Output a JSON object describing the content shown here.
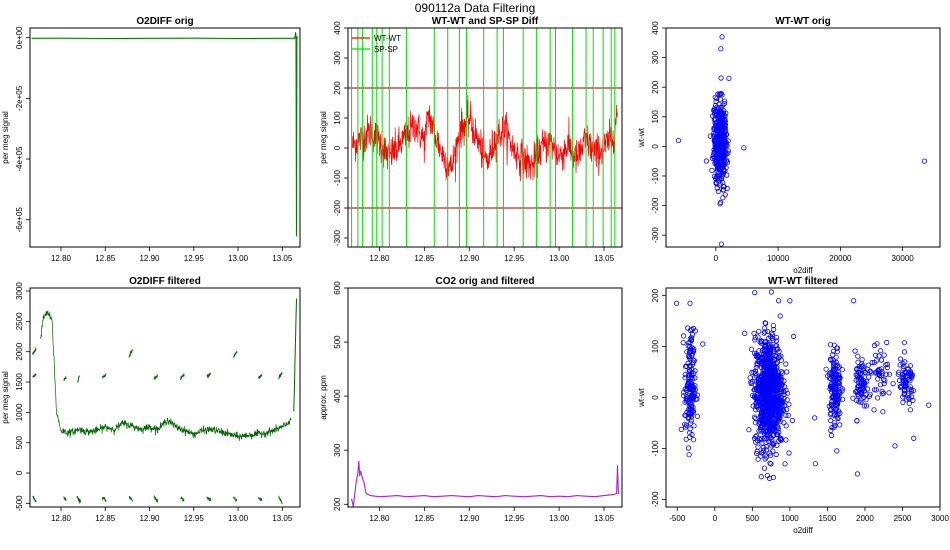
{
  "page_title": "090112a   Data Filtering",
  "chart_data": [
    {
      "type": "line",
      "title": "O2DIFF orig",
      "xlabel": "",
      "ylabel": "per meg signal",
      "xlim": [
        12.765,
        13.07
      ],
      "ylim": [
        -690000,
        32000
      ],
      "xticks": [
        12.8,
        12.85,
        12.9,
        12.95,
        13.0,
        13.05
      ],
      "xtick_labels": [
        "12.80",
        "12.85",
        "12.90",
        "12.95",
        "13.00",
        "13.05"
      ],
      "yticks": [
        0,
        -200000,
        -400000,
        -600000
      ],
      "ytick_labels": [
        "0e+00",
        "-2e+05",
        "-4e+05",
        "-6e+05"
      ],
      "series": [
        {
          "name": "O2DIFF",
          "color": "#008000",
          "x": [
            12.767,
            12.8,
            12.85,
            12.9,
            12.95,
            13.0,
            13.05,
            13.064,
            13.065,
            13.0655,
            13.066,
            13.0665,
            13.067
          ],
          "y": [
            -2000,
            -1500,
            -2500,
            -2000,
            -1500,
            -2500,
            -2000,
            -2000,
            18000,
            -2000,
            -655000,
            5000,
            -2000
          ]
        }
      ]
    },
    {
      "type": "line",
      "title": "WT-WT and SP-SP Diff",
      "xlabel": "",
      "ylabel": "per meg signal",
      "xlim": [
        12.765,
        13.07
      ],
      "ylim": [
        -330,
        400
      ],
      "xticks": [
        12.8,
        12.85,
        12.9,
        12.95,
        13.0,
        13.05
      ],
      "xtick_labels": [
        "12.80",
        "12.85",
        "12.90",
        "12.95",
        "13.00",
        "13.05"
      ],
      "yticks": [
        -300,
        -200,
        -100,
        0,
        100,
        200,
        300,
        400
      ],
      "ytick_labels": [
        "-300",
        "-200",
        "-100",
        "0",
        "100",
        "200",
        "300",
        "400"
      ],
      "hlines": [
        200,
        -200
      ],
      "hline_color": "#8b0000",
      "legend": [
        "WT-WT",
        "SP-SP"
      ],
      "legend_position": "top-left",
      "series": [
        {
          "name": "WT-WT",
          "color": "#ff0000",
          "x": [
            12.77,
            12.78,
            12.79,
            12.8,
            12.81,
            12.82,
            12.83,
            12.84,
            12.85,
            12.855,
            12.86,
            12.87,
            12.88,
            12.89,
            12.9,
            12.91,
            12.92,
            12.93,
            12.94,
            12.95,
            12.96,
            12.97,
            12.98,
            12.99,
            13.0,
            13.01,
            13.02,
            13.03,
            13.04,
            13.05,
            13.06,
            13.065
          ],
          "y": [
            10,
            30,
            60,
            20,
            -30,
            0,
            40,
            80,
            20,
            120,
            60,
            -20,
            -70,
            60,
            100,
            20,
            -50,
            40,
            60,
            -10,
            -40,
            -60,
            0,
            20,
            -30,
            10,
            -40,
            30,
            -20,
            0,
            40,
            120
          ],
          "band": 55
        },
        {
          "name": "SP-SP",
          "color": "#00e000",
          "spikes_x": [
            12.769,
            12.776,
            12.781,
            12.792,
            12.797,
            12.803,
            12.811,
            12.83,
            12.861,
            12.876,
            12.889,
            12.897,
            12.916,
            12.931,
            12.938,
            12.96,
            12.975,
            12.99,
            12.996,
            13.015,
            13.03,
            13.038,
            13.049,
            13.058,
            13.062
          ],
          "spike_top": 400,
          "spike_bottom": -330
        }
      ]
    },
    {
      "type": "scatter",
      "title": "WT-WT orig",
      "xlabel": "o2diff",
      "ylabel": "wt-wt",
      "xlim": [
        -8000,
        36000
      ],
      "ylim": [
        -340,
        400
      ],
      "xticks": [
        0,
        10000,
        20000,
        30000
      ],
      "xtick_labels": [
        "0",
        "10000",
        "20000",
        "30000"
      ],
      "yticks": [
        -300,
        -200,
        -100,
        0,
        100,
        200,
        300,
        400
      ],
      "ytick_labels": [
        "-300",
        "-200",
        "-100",
        "0",
        "100",
        "200",
        "300",
        "400"
      ],
      "marker_color": "#0000ff",
      "clusters": [
        {
          "x_mean": 700,
          "x_sd": 550,
          "y_mean": 10,
          "y_sd": 70,
          "n": 420
        }
      ],
      "points": [
        {
          "x": -6000,
          "y": 20
        },
        {
          "x": 33500,
          "y": -50
        },
        {
          "x": 4500,
          "y": -5
        },
        {
          "x": 1000,
          "y": 370
        },
        {
          "x": 800,
          "y": 330
        },
        {
          "x": 900,
          "y": -330
        },
        {
          "x": 2100,
          "y": 230
        }
      ]
    },
    {
      "type": "line",
      "title": "O2DIFF filtered",
      "xlabel": "",
      "ylabel": "per meg signal",
      "xlim": [
        12.765,
        13.07
      ],
      "ylim": [
        -560,
        3050
      ],
      "xticks": [
        12.8,
        12.85,
        12.9,
        12.95,
        13.0,
        13.05
      ],
      "xtick_labels": [
        "12.80",
        "12.85",
        "12.90",
        "12.95",
        "13.00",
        "13.05"
      ],
      "yticks": [
        -500,
        0,
        500,
        1000,
        1500,
        2000,
        2500,
        3000
      ],
      "ytick_labels": [
        "-500",
        "0",
        "500",
        "1000",
        "1500",
        "2000",
        "2500",
        "3000"
      ],
      "series": [
        {
          "name": "O2DIFF filtered",
          "color": "#006400",
          "x": [
            12.777,
            12.78,
            12.785,
            12.79,
            12.795,
            12.8,
            12.81,
            12.82,
            12.83,
            12.84,
            12.85,
            12.86,
            12.87,
            12.88,
            12.89,
            12.9,
            12.91,
            12.92,
            12.93,
            12.94,
            12.95,
            12.96,
            12.97,
            12.98,
            12.99,
            13.0,
            13.01,
            13.02,
            13.03,
            13.04,
            13.05,
            13.055,
            13.06
          ],
          "y": [
            2200,
            2550,
            2650,
            2500,
            1000,
            700,
            660,
            720,
            680,
            700,
            760,
            720,
            820,
            780,
            720,
            760,
            720,
            880,
            760,
            700,
            640,
            700,
            720,
            680,
            640,
            600,
            620,
            640,
            660,
            700,
            760,
            800,
            900
          ],
          "band": 55
        }
      ],
      "segments": [
        {
          "x": [
            12.768,
            12.772
          ],
          "y": [
            1950,
            2050
          ]
        },
        {
          "x": [
            12.768,
            12.772
          ],
          "y": [
            1580,
            1620
          ]
        },
        {
          "x": [
            12.768,
            12.772
          ],
          "y": [
            -390,
            -470
          ]
        },
        {
          "x": [
            12.803,
            12.806
          ],
          "y": [
            1540,
            1570
          ]
        },
        {
          "x": [
            12.803,
            12.806
          ],
          "y": [
            -390,
            -440
          ]
        },
        {
          "x": [
            12.819,
            12.821
          ],
          "y": [
            1500,
            1620
          ]
        },
        {
          "x": [
            12.818,
            12.822
          ],
          "y": [
            -400,
            -470
          ]
        },
        {
          "x": [
            12.847,
            12.851
          ],
          "y": [
            1570,
            1620
          ]
        },
        {
          "x": [
            12.847,
            12.851
          ],
          "y": [
            -400,
            -460
          ]
        },
        {
          "x": [
            12.877,
            12.881
          ],
          "y": [
            1930,
            2020
          ]
        },
        {
          "x": [
            12.877,
            12.881
          ],
          "y": [
            -390,
            -460
          ]
        },
        {
          "x": [
            12.905,
            12.909
          ],
          "y": [
            1560,
            1610
          ]
        },
        {
          "x": [
            12.905,
            12.909
          ],
          "y": [
            -400,
            -450
          ]
        },
        {
          "x": [
            12.935,
            12.939
          ],
          "y": [
            1570,
            1620
          ]
        },
        {
          "x": [
            12.935,
            12.939
          ],
          "y": [
            -400,
            -450
          ]
        },
        {
          "x": [
            12.965,
            12.969
          ],
          "y": [
            1590,
            1630
          ]
        },
        {
          "x": [
            12.965,
            12.969
          ],
          "y": [
            -400,
            -440
          ]
        },
        {
          "x": [
            12.995,
            12.999
          ],
          "y": [
            1920,
            2010
          ]
        },
        {
          "x": [
            12.995,
            12.999
          ],
          "y": [
            -400,
            -460
          ]
        },
        {
          "x": [
            13.023,
            13.027
          ],
          "y": [
            1560,
            1610
          ]
        },
        {
          "x": [
            13.023,
            13.027
          ],
          "y": [
            -400,
            -450
          ]
        },
        {
          "x": [
            13.046,
            13.05
          ],
          "y": [
            1590,
            1640
          ]
        },
        {
          "x": [
            13.046,
            13.05
          ],
          "y": [
            -400,
            -510
          ]
        },
        {
          "x": [
            13.063,
            13.066
          ],
          "y": [
            1000,
            2880
          ]
        }
      ]
    },
    {
      "type": "line",
      "title": "CO2 orig and filtered",
      "xlabel": "",
      "ylabel": "approx. ppm",
      "xlim": [
        12.765,
        13.07
      ],
      "ylim": [
        195,
        600
      ],
      "xticks": [
        12.8,
        12.85,
        12.9,
        12.95,
        13.0,
        13.05
      ],
      "xtick_labels": [
        "12.80",
        "12.85",
        "12.90",
        "12.95",
        "13.00",
        "13.05"
      ],
      "yticks": [
        200,
        300,
        400,
        500,
        600
      ],
      "ytick_labels": [
        "200",
        "300",
        "400",
        "500",
        "600"
      ],
      "series": [
        {
          "name": "CO2",
          "color": "#aa22cc",
          "x": [
            12.769,
            12.771,
            12.772,
            12.774,
            12.776,
            12.777,
            12.778,
            12.779,
            12.781,
            12.783,
            12.785,
            12.79,
            12.8,
            12.81,
            12.82,
            12.83,
            12.84,
            12.85,
            12.86,
            12.87,
            12.88,
            12.89,
            12.9,
            12.91,
            12.92,
            12.93,
            12.94,
            12.95,
            12.96,
            12.97,
            12.98,
            12.99,
            13.0,
            13.01,
            13.02,
            13.03,
            13.04,
            13.05,
            13.06,
            13.064,
            13.065,
            13.066,
            13.067
          ],
          "y": [
            210,
            195,
            212,
            240,
            258,
            280,
            252,
            262,
            248,
            240,
            220,
            216,
            214,
            215,
            216,
            214,
            215,
            216,
            214,
            215,
            216,
            215,
            214,
            216,
            215,
            214,
            216,
            215,
            214,
            215,
            216,
            214,
            215,
            214,
            216,
            215,
            214,
            216,
            218,
            220,
            272,
            220,
            221
          ]
        }
      ]
    },
    {
      "type": "scatter",
      "title": "WT-WT filtered",
      "xlabel": "o2diff",
      "ylabel": "wt-wt",
      "xlim": [
        -650,
        3000
      ],
      "ylim": [
        -215,
        215
      ],
      "xticks": [
        -500,
        0,
        500,
        1000,
        1500,
        2000,
        2500,
        3000
      ],
      "xtick_labels": [
        "-500",
        "0",
        "500",
        "1000",
        "1500",
        "2000",
        "2500",
        "3000"
      ],
      "yticks": [
        -200,
        -100,
        0,
        100,
        200
      ],
      "ytick_labels": [
        "-200",
        "-100",
        "0",
        "100",
        "200"
      ],
      "marker_color": "#0000ff",
      "clusters": [
        {
          "x_mean": -330,
          "x_sd": 35,
          "y_mean": 20,
          "y_sd": 55,
          "n": 160
        },
        {
          "x_mean": 720,
          "x_sd": 95,
          "y_mean": 10,
          "y_sd": 55,
          "n": 900
        },
        {
          "x_mean": 1600,
          "x_sd": 40,
          "y_mean": 20,
          "y_sd": 40,
          "n": 150
        },
        {
          "x_mean": 1940,
          "x_sd": 35,
          "y_mean": 25,
          "y_sd": 30,
          "n": 70
        },
        {
          "x_mean": 2200,
          "x_sd": 110,
          "y_mean": 40,
          "y_sd": 25,
          "n": 60
        },
        {
          "x_mean": 2550,
          "x_sd": 60,
          "y_mean": 25,
          "y_sd": 25,
          "n": 70
        }
      ],
      "points": [
        {
          "x": -510,
          "y": 185
        },
        {
          "x": -330,
          "y": 185
        },
        {
          "x": -160,
          "y": 105
        },
        {
          "x": 850,
          "y": 190
        },
        {
          "x": 1000,
          "y": 190
        },
        {
          "x": 1050,
          "y": 120
        },
        {
          "x": 1330,
          "y": -40
        },
        {
          "x": 1340,
          "y": -130
        },
        {
          "x": 1850,
          "y": 190
        },
        {
          "x": 1900,
          "y": -150
        },
        {
          "x": 2400,
          "y": -95
        },
        {
          "x": 2850,
          "y": -15
        },
        {
          "x": 610,
          "y": -115
        },
        {
          "x": 480,
          "y": 30
        },
        {
          "x": 2650,
          "y": -80
        }
      ]
    }
  ]
}
